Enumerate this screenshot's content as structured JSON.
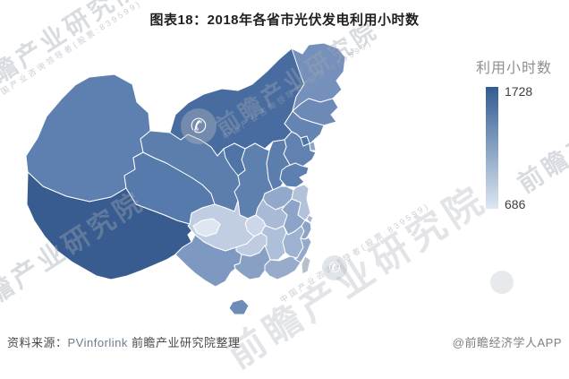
{
  "title": "图表18：2018年各省市光伏发电利用小时数",
  "legend": {
    "title": "利用小时数",
    "max": "1728",
    "min": "686"
  },
  "footer": {
    "source_label": "资料来源：",
    "source_name": "PVinforlink",
    "source_rest": " 前瞻产业研究院整理",
    "credit": "@前瞻经济学人APP"
  },
  "watermarks": {
    "brand": "前瞻产业研究院",
    "tagline": "中国产业咨询领导者(股票:839599)",
    "logo_glyph": "✆"
  },
  "chart_data": {
    "type": "choropleth_map",
    "title": "2018年各省市光伏发电利用小时数",
    "unit": "小时",
    "legend_label": "利用小时数",
    "value_range": [
      686,
      1728
    ],
    "colorscale": {
      "high": "#315c92",
      "low": "#dde7f2"
    },
    "no_data_color": "#b8c0cb",
    "legend_position": "right",
    "regions": [
      {
        "id": "xinjiang",
        "name": "新疆",
        "fill": "#5e80b0"
      },
      {
        "id": "xizang",
        "name": "西藏",
        "fill": "#385c90"
      },
      {
        "id": "qinghai",
        "name": "青海",
        "fill": "#557aab"
      },
      {
        "id": "gansu",
        "name": "甘肃",
        "fill": "#5c7ead"
      },
      {
        "id": "neimenggu",
        "name": "内蒙古",
        "fill": "#486ca0"
      },
      {
        "id": "heilongjiang",
        "name": "黑龙江",
        "fill": "#7590bb"
      },
      {
        "id": "jilin",
        "name": "吉林",
        "fill": "#6d89b6"
      },
      {
        "id": "liaoning",
        "name": "辽宁",
        "fill": "#6484b2"
      },
      {
        "id": "hebei",
        "name": "河北",
        "fill": "#6182b1"
      },
      {
        "id": "shanxi",
        "name": "山西",
        "fill": "#5c7ead"
      },
      {
        "id": "shandong",
        "name": "山东",
        "fill": "#5e80b0"
      },
      {
        "id": "shaanxi",
        "name": "陕西",
        "fill": "#5e80af"
      },
      {
        "id": "henan",
        "name": "河南",
        "fill": "#92a9cb"
      },
      {
        "id": "jiangsu",
        "name": "江苏",
        "fill": "#b2c2db"
      },
      {
        "id": "anhui",
        "name": "安徽",
        "fill": "#8ca4c8"
      },
      {
        "id": "hubei",
        "name": "湖北",
        "fill": "#a9bad6"
      },
      {
        "id": "chongqing",
        "name": "重庆",
        "fill": "#ccd8ea"
      },
      {
        "id": "sichuan",
        "name": "四川",
        "fill": "#c0cde2"
      },
      {
        "id": "guizhou",
        "name": "贵州",
        "fill": "#becbe1"
      },
      {
        "id": "yunnan",
        "name": "云南",
        "fill": "#7e99c1"
      },
      {
        "id": "hunan",
        "name": "湖南",
        "fill": "#aebfd9"
      },
      {
        "id": "jiangxi",
        "name": "江西",
        "fill": "#9db2d0"
      },
      {
        "id": "zhejiang",
        "name": "浙江",
        "fill": "#8aa3c7"
      },
      {
        "id": "fujian",
        "name": "福建",
        "fill": "#93aacb"
      },
      {
        "id": "guangdong",
        "name": "广东",
        "fill": "#96acca"
      },
      {
        "id": "guangxi",
        "name": "广西",
        "fill": "#87a0c4"
      },
      {
        "id": "hainan",
        "name": "海南",
        "fill": "#6e8cb8"
      },
      {
        "id": "taiwan",
        "name": "台湾",
        "fill": "#b8c0cb"
      },
      {
        "id": "ningxia",
        "name": "宁夏",
        "fill": "#4f74a6"
      },
      {
        "id": "sichuan_west",
        "name": "四川浅色区",
        "fill": "#dde6f1"
      },
      {
        "id": "beijing",
        "name": "北京",
        "fill": "#4e73a5"
      },
      {
        "id": "tianjin",
        "name": "天津",
        "fill": "#8ea5c8"
      },
      {
        "id": "shanghai",
        "name": "上海",
        "fill": "#a5b7d4"
      }
    ]
  }
}
